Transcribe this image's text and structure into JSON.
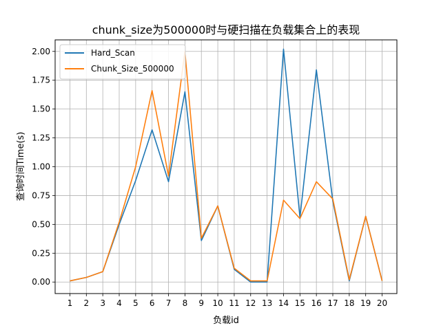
{
  "chart_data": {
    "type": "line",
    "title": "chunk_size为500000时与硬扫描在负载集合上的表现",
    "xlabel": "负载id",
    "ylabel": "查询时间Time(s)",
    "x": [
      1,
      2,
      3,
      4,
      5,
      6,
      7,
      8,
      9,
      10,
      11,
      12,
      13,
      14,
      15,
      16,
      17,
      18,
      19,
      20
    ],
    "x_ticks": [
      "1",
      "2",
      "3",
      "4",
      "5",
      "6",
      "7",
      "8",
      "9",
      "10",
      "11",
      "12",
      "13",
      "14",
      "15",
      "16",
      "17",
      "18",
      "19",
      "20"
    ],
    "xlim": [
      0.1,
      20.9
    ],
    "ylim": [
      -0.1,
      2.1
    ],
    "y_ticks": [
      0.0,
      0.25,
      0.5,
      0.75,
      1.0,
      1.25,
      1.5,
      1.75,
      2.0
    ],
    "y_tick_labels": [
      "0.00",
      "0.25",
      "0.50",
      "0.75",
      "1.00",
      "1.25",
      "1.50",
      "1.75",
      "2.00"
    ],
    "grid": true,
    "legend_position": "top-left",
    "series": [
      {
        "name": "Hard_Scan",
        "color": "#1f77b4",
        "values": [
          0.01,
          0.04,
          0.09,
          0.5,
          0.88,
          1.32,
          0.87,
          1.65,
          0.36,
          0.66,
          0.11,
          0.0,
          0.0,
          2.02,
          0.56,
          1.84,
          0.7,
          0.01,
          0.57,
          0.01
        ]
      },
      {
        "name": "Chunk_Size_500000",
        "color": "#ff7f0e",
        "values": [
          0.01,
          0.04,
          0.09,
          0.52,
          1.0,
          1.66,
          0.92,
          2.0,
          0.38,
          0.66,
          0.12,
          0.01,
          0.01,
          0.71,
          0.55,
          0.87,
          0.72,
          0.02,
          0.57,
          0.01
        ]
      }
    ]
  }
}
